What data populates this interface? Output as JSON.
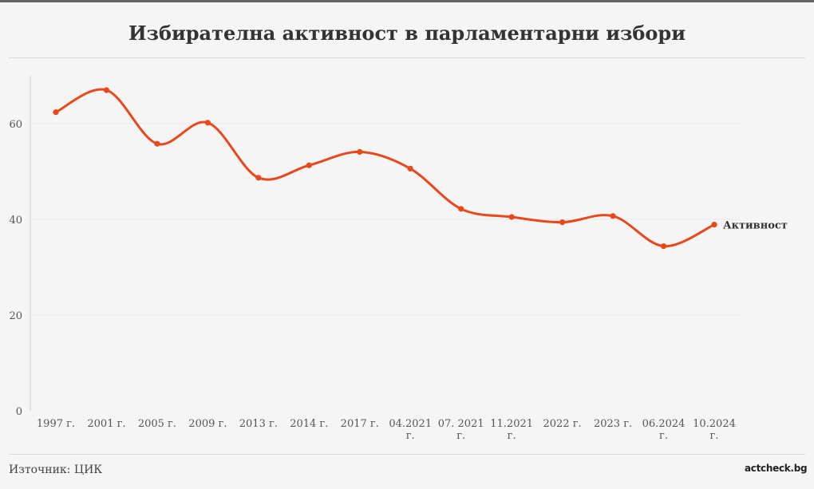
{
  "title": "Избирателна активност в парламентарни избори",
  "source": "Източник: ЦИК",
  "logo_text": "factcheck.bg",
  "colors": {
    "line": "#e8481b",
    "axis_text": "#555555",
    "grid": "#e9e9e9",
    "background": "#f5f5f5",
    "logo_accent": "#e63312"
  },
  "chart_data": {
    "type": "line",
    "categories": [
      "1997 г.",
      "2001 г.",
      "2005 г.",
      "2009 г.",
      "2013 г.",
      "2014 г.",
      "2017 г.",
      "04.2021 г.",
      "07. 2021 г.",
      "11.2021 г.",
      "2022 г.",
      "2023 г.",
      "06.2024 г.",
      "10.2024 г."
    ],
    "series": [
      {
        "name": "Активност",
        "values": [
          62.4,
          67.0,
          55.8,
          60.2,
          48.7,
          51.3,
          54.1,
          50.6,
          42.2,
          40.5,
          39.4,
          40.7,
          34.4,
          38.9
        ]
      }
    ],
    "ylim": [
      0,
      70
    ],
    "yticks": [
      0,
      20,
      40,
      60
    ],
    "grid": true,
    "legend": "inline-label-at-line-end",
    "xlabel": "",
    "ylabel": ""
  }
}
